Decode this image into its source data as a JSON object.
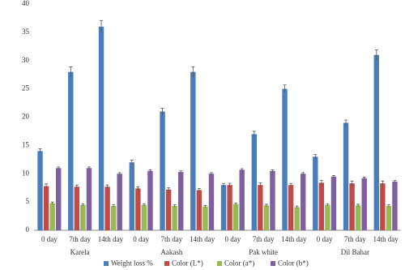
{
  "chart_data": {
    "type": "bar",
    "categories": [
      "0 day",
      "7th day",
      "14th day",
      "0 day",
      "7th day",
      "14th day",
      "0 day",
      "7th day",
      "14th day",
      "0 day",
      "7th day",
      "14th day"
    ],
    "group_labels": [
      "Karela",
      "Aakash",
      "Pak white",
      "Dil Bahar"
    ],
    "series": [
      {
        "name": "Weight loss %",
        "color": "#4a7ebb",
        "values": [
          14,
          28,
          36,
          12,
          21,
          28,
          8,
          17,
          25,
          13,
          19,
          31
        ],
        "errors": [
          0.4,
          0.9,
          1.1,
          0.4,
          0.6,
          0.9,
          0.3,
          0.5,
          0.7,
          0.4,
          0.5,
          0.9
        ]
      },
      {
        "name": "Color (L*)",
        "color": "#be4b48",
        "values": [
          7.8,
          7.7,
          7.7,
          7.4,
          7.2,
          7.1,
          8.0,
          8.0,
          8.0,
          8.4,
          8.3,
          8.3
        ],
        "errors": [
          0.4,
          0.3,
          0.3,
          0.3,
          0.3,
          0.3,
          0.3,
          0.4,
          0.3,
          0.4,
          0.4,
          0.4
        ]
      },
      {
        "name": "Color (a*)",
        "color": "#98b954",
        "values": [
          4.8,
          4.5,
          4.3,
          4.5,
          4.3,
          4.2,
          4.6,
          4.4,
          4.1,
          4.5,
          4.4,
          4.3
        ],
        "errors": [
          0.2,
          0.2,
          0.2,
          0.2,
          0.2,
          0.2,
          0.2,
          0.2,
          0.2,
          0.2,
          0.2,
          0.2
        ]
      },
      {
        "name": "Color (b*)",
        "color": "#7d60a0",
        "values": [
          11,
          11,
          10,
          10.5,
          10.3,
          10,
          10.7,
          10.5,
          10,
          9.5,
          9.2,
          8.6
        ],
        "errors": [
          0.2,
          0.2,
          0.2,
          0.2,
          0.2,
          0.2,
          0.2,
          0.2,
          0.2,
          0.2,
          0.2,
          0.2
        ]
      }
    ],
    "ylim": [
      0,
      40
    ],
    "yticks": [
      0,
      5,
      10,
      15,
      20,
      25,
      30,
      35,
      40
    ],
    "grid": false,
    "legend": "bottom"
  }
}
